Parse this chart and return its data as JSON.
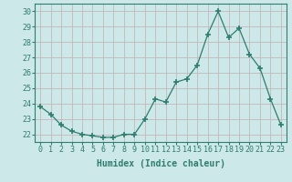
{
  "xlabel": "Humidex (Indice chaleur)",
  "x": [
    0,
    1,
    2,
    3,
    4,
    5,
    6,
    7,
    8,
    9,
    10,
    11,
    12,
    13,
    14,
    15,
    16,
    17,
    18,
    19,
    20,
    21,
    22,
    23
  ],
  "y": [
    23.8,
    23.3,
    22.6,
    22.2,
    22.0,
    21.9,
    21.8,
    21.8,
    22.0,
    22.0,
    23.0,
    24.3,
    24.1,
    25.4,
    25.6,
    26.5,
    28.5,
    30.0,
    28.3,
    28.9,
    27.2,
    26.3,
    24.3,
    22.6
  ],
  "line_color": "#2e7d6e",
  "marker": "+",
  "marker_size": 4,
  "bg_color": "#cce8e8",
  "grid_color": "#c4b8b8",
  "tick_color": "#2e7d6e",
  "label_color": "#2e7d6e",
  "ylim": [
    21.5,
    30.5
  ],
  "yticks": [
    22,
    23,
    24,
    25,
    26,
    27,
    28,
    29,
    30
  ],
  "xticks": [
    0,
    1,
    2,
    3,
    4,
    5,
    6,
    7,
    8,
    9,
    10,
    11,
    12,
    13,
    14,
    15,
    16,
    17,
    18,
    19,
    20,
    21,
    22,
    23
  ],
  "font_family": "monospace",
  "xlabel_fontsize": 7,
  "tick_fontsize": 6
}
